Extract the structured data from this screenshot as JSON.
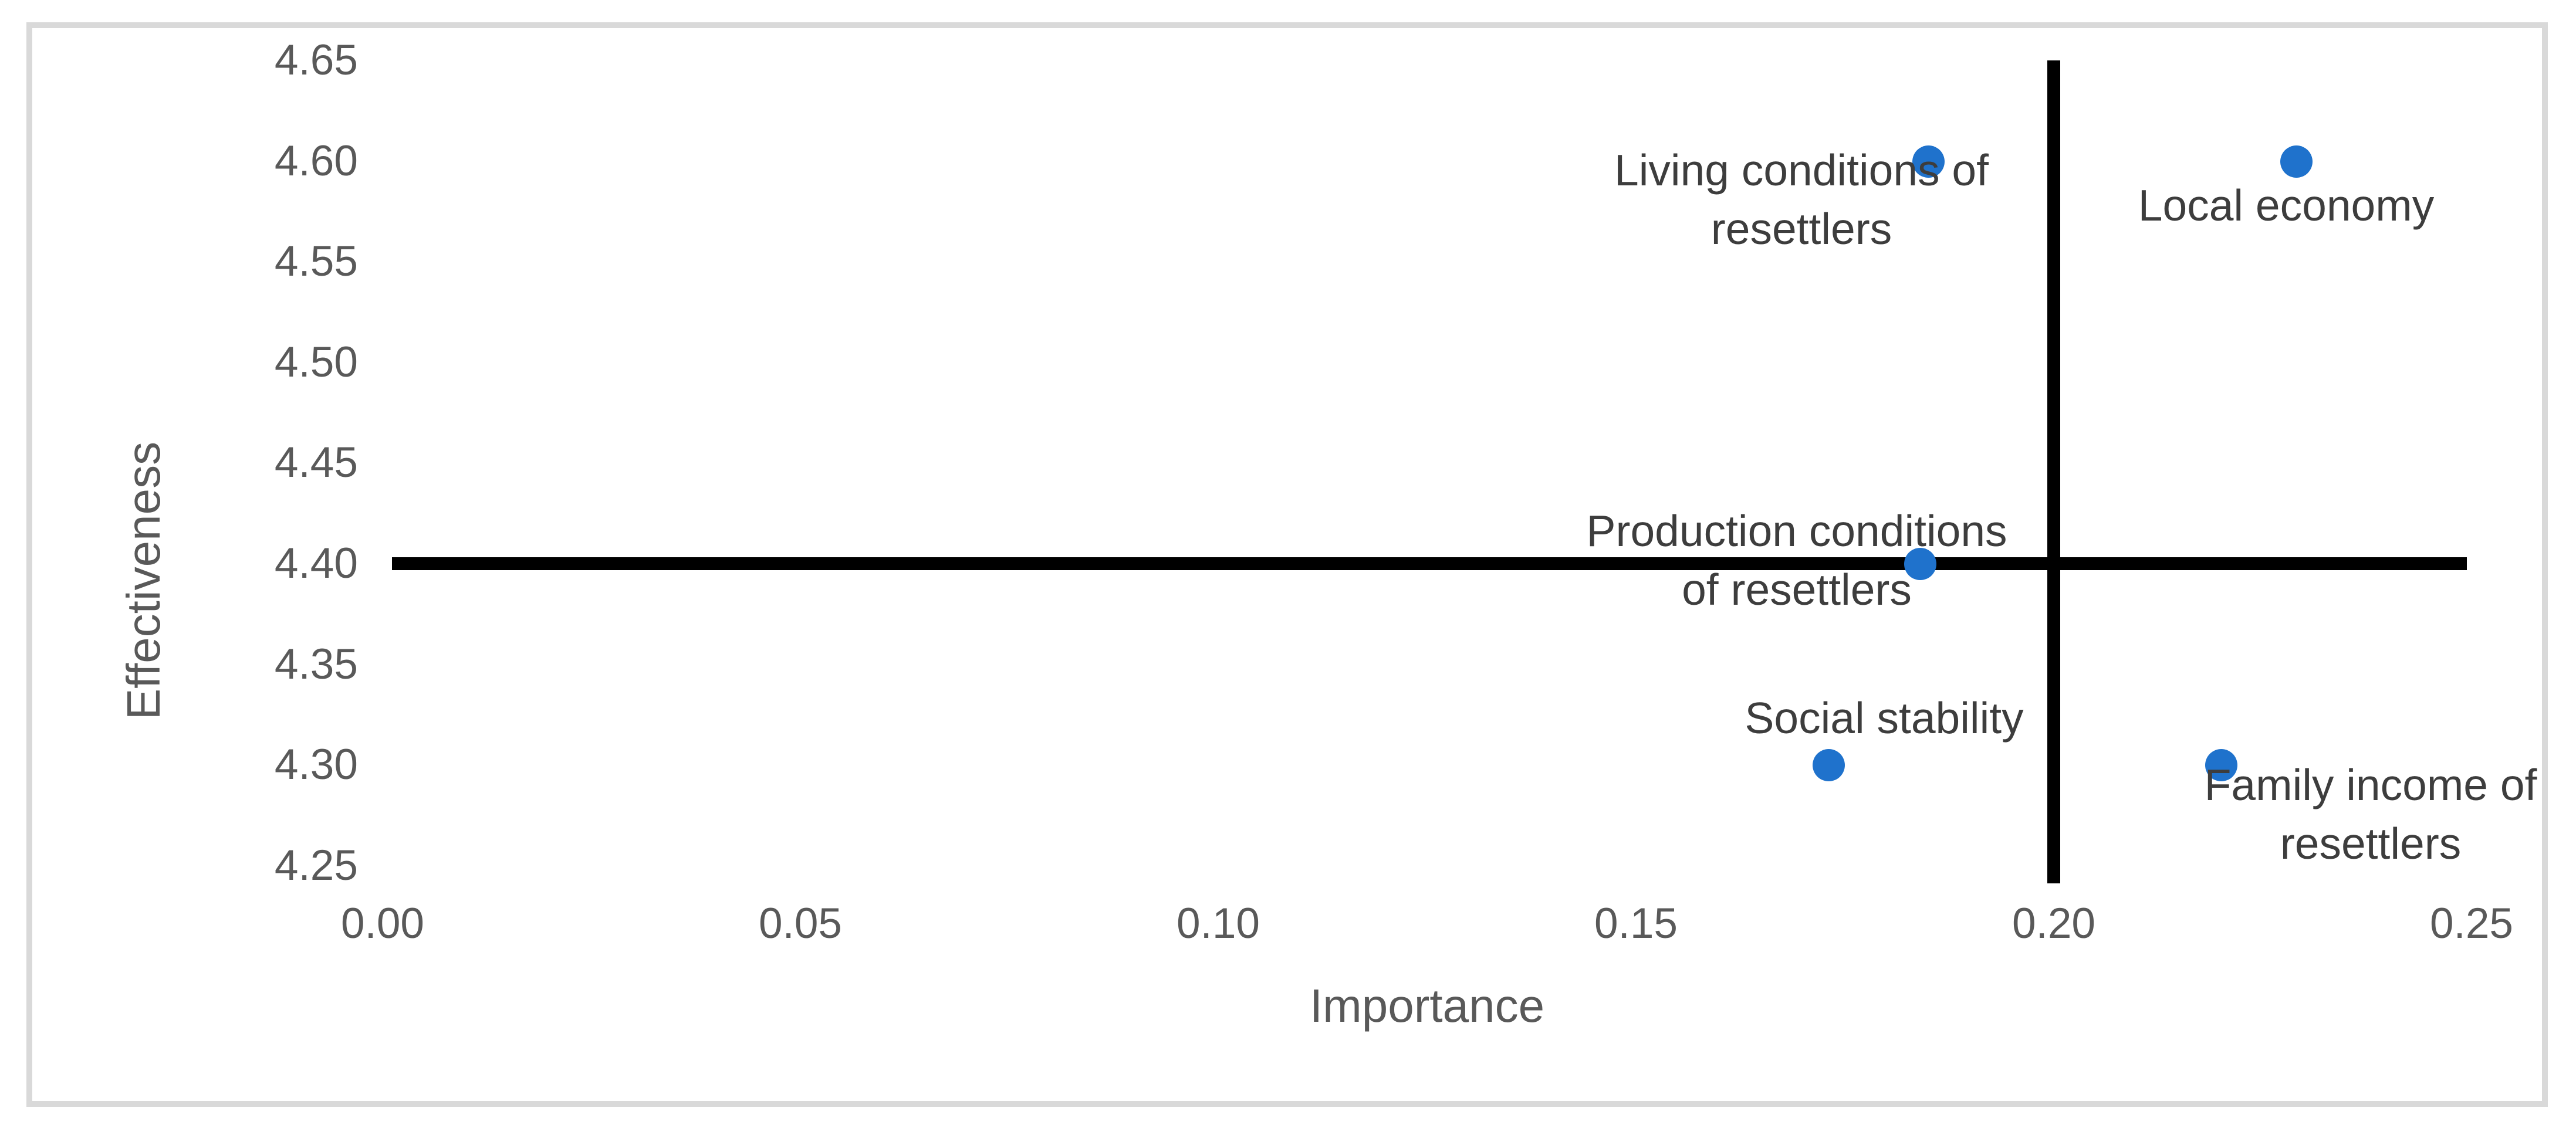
{
  "figure": {
    "background_color": "#ffffff",
    "border_color": "#d9d9d9"
  },
  "chart_data": {
    "type": "scatter",
    "title": "",
    "xlabel": "Importance",
    "ylabel": "Effectiveness",
    "xlim": [
      0.0,
      0.25
    ],
    "ylim": [
      4.25,
      4.65
    ],
    "x_tick_labels": [
      "0.00",
      "0.05",
      "0.10",
      "0.15",
      "0.20",
      "0.25"
    ],
    "y_tick_labels": [
      "4.25",
      "4.30",
      "4.35",
      "4.40",
      "4.45",
      "4.50",
      "4.55",
      "4.60",
      "4.65"
    ],
    "grid": false,
    "legend": "none",
    "marker_color": "#1f72cc",
    "quadrant_lines": {
      "vertical_x": 0.2,
      "horizontal_y": 4.4,
      "color": "#000000"
    },
    "points": [
      {
        "label": "Living conditions of resettlers",
        "label_lines": [
          "Living conditions of",
          "resettlers"
        ],
        "x": 0.185,
        "y": 4.6
      },
      {
        "label": "Local economy",
        "label_lines": [
          "Local economy"
        ],
        "x": 0.229,
        "y": 4.6
      },
      {
        "label": "Production conditions of resettlers",
        "label_lines": [
          "Production conditions",
          "of resettlers"
        ],
        "x": 0.184,
        "y": 4.4
      },
      {
        "label": "Social stability",
        "label_lines": [
          "Social stability"
        ],
        "x": 0.173,
        "y": 4.3
      },
      {
        "label": "Family income of resettlers",
        "label_lines": [
          "Family income of",
          "resettlers"
        ],
        "x": 0.22,
        "y": 4.3
      }
    ]
  }
}
